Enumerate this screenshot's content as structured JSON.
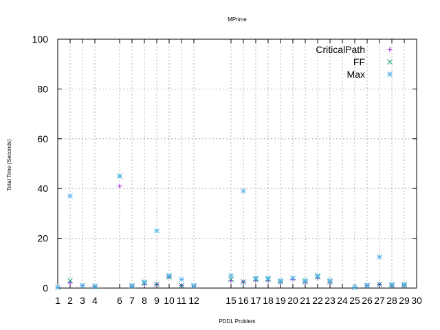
{
  "chart_data": {
    "type": "scatter",
    "title": "MPrime",
    "xlabel": "PDDL Problem",
    "ylabel": "Total Time (Seconds)",
    "xlim": [
      1,
      30
    ],
    "ylim": [
      0,
      100
    ],
    "x_ticks": [
      1,
      2,
      3,
      4,
      6,
      7,
      8,
      9,
      10,
      11,
      12,
      15,
      16,
      17,
      18,
      19,
      20,
      21,
      22,
      23,
      24,
      25,
      26,
      27,
      28,
      29,
      30
    ],
    "y_ticks": [
      0,
      20,
      40,
      60,
      80,
      100
    ],
    "grid": true,
    "legend_position": "top-right",
    "series": [
      {
        "name": "CriticalPath",
        "marker": "plus",
        "color": "#9400d3",
        "points": [
          [
            1,
            0.3
          ],
          [
            2,
            2
          ],
          [
            3,
            1
          ],
          [
            4,
            0.6
          ],
          [
            6,
            41
          ],
          [
            7,
            0.8
          ],
          [
            8,
            1.5
          ],
          [
            9,
            1.5
          ],
          [
            10,
            4.5
          ],
          [
            11,
            1
          ],
          [
            12,
            0.8
          ],
          [
            15,
            3
          ],
          [
            16,
            2.5
          ],
          [
            17,
            3
          ],
          [
            18,
            3
          ],
          [
            19,
            2.5
          ],
          [
            20,
            3.5
          ],
          [
            21,
            2.5
          ],
          [
            22,
            4
          ],
          [
            23,
            2.5
          ],
          [
            25,
            0.3
          ],
          [
            26,
            1
          ],
          [
            27,
            1.5
          ],
          [
            28,
            1
          ],
          [
            29,
            1.2
          ]
        ]
      },
      {
        "name": "FF",
        "marker": "cross",
        "color": "#009e73",
        "points": [
          [
            1,
            0.3
          ],
          [
            2,
            3
          ],
          [
            3,
            1
          ],
          [
            4,
            0.6
          ],
          [
            6,
            45
          ],
          [
            7,
            0.8
          ],
          [
            8,
            2
          ],
          [
            9,
            1.5
          ],
          [
            10,
            4.5
          ],
          [
            11,
            1
          ],
          [
            12,
            0.8
          ],
          [
            15,
            3.5
          ],
          [
            16,
            2.5
          ],
          [
            17,
            3.5
          ],
          [
            18,
            3.5
          ],
          [
            19,
            2.5
          ],
          [
            20,
            4
          ],
          [
            21,
            2.5
          ],
          [
            22,
            4.5
          ],
          [
            23,
            2.5
          ],
          [
            25,
            0.3
          ],
          [
            26,
            1
          ],
          [
            27,
            1.5
          ],
          [
            28,
            1
          ],
          [
            29,
            1.2
          ]
        ]
      },
      {
        "name": "Max",
        "marker": "star",
        "color": "#56b4e9",
        "points": [
          [
            1,
            0.3
          ],
          [
            2,
            37
          ],
          [
            3,
            1
          ],
          [
            4,
            0.8
          ],
          [
            6,
            45
          ],
          [
            7,
            1
          ],
          [
            8,
            2.5
          ],
          [
            9,
            23
          ],
          [
            10,
            5
          ],
          [
            11,
            3.5
          ],
          [
            12,
            1
          ],
          [
            15,
            5
          ],
          [
            16,
            39
          ],
          [
            17,
            4
          ],
          [
            18,
            4
          ],
          [
            19,
            3
          ],
          [
            20,
            4
          ],
          [
            21,
            3
          ],
          [
            22,
            5
          ],
          [
            23,
            3
          ],
          [
            25,
            0.3
          ],
          [
            26,
            1.2
          ],
          [
            27,
            12.5
          ],
          [
            28,
            1.5
          ],
          [
            29,
            1.5
          ]
        ]
      }
    ]
  }
}
